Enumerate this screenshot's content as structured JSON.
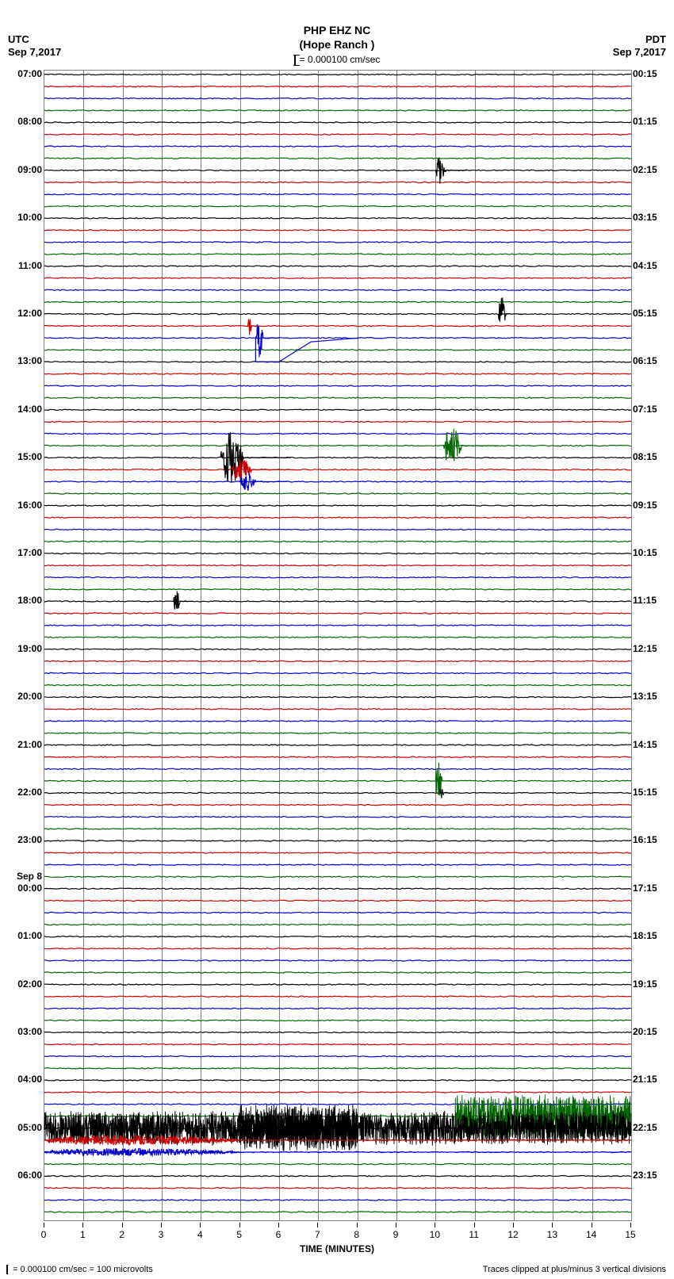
{
  "station": {
    "code": "PHP EHZ NC",
    "name": "(Hope Ranch )"
  },
  "tz_left": "UTC",
  "date_left": "Sep 7,2017",
  "tz_right": "PDT",
  "date_right": "Sep 7,2017",
  "scale": {
    "label": "= 0.000100 cm/sec"
  },
  "footer_left": "= 0.000100 cm/sec =    100 microvolts",
  "footer_right": "Traces clipped at plus/minus 3 vertical divisions",
  "x_axis": {
    "title": "TIME (MINUTES)",
    "ticks": [
      0,
      1,
      2,
      3,
      4,
      5,
      6,
      7,
      8,
      9,
      10,
      11,
      12,
      13,
      14,
      15
    ]
  },
  "colors": {
    "black": "#000000",
    "red": "#cc0000",
    "blue": "#0000cc",
    "green": "#006600",
    "grid": "#808080",
    "bg": "#ffffff"
  },
  "plot": {
    "trace_count": 96,
    "row_height": 15.1,
    "color_cycle": [
      "black",
      "red",
      "blue",
      "green"
    ],
    "left_labels": [
      {
        "row": 0,
        "text": "07:00"
      },
      {
        "row": 4,
        "text": "08:00"
      },
      {
        "row": 8,
        "text": "09:00"
      },
      {
        "row": 12,
        "text": "10:00"
      },
      {
        "row": 16,
        "text": "11:00"
      },
      {
        "row": 20,
        "text": "12:00"
      },
      {
        "row": 24,
        "text": "13:00"
      },
      {
        "row": 28,
        "text": "14:00"
      },
      {
        "row": 32,
        "text": "15:00"
      },
      {
        "row": 36,
        "text": "16:00"
      },
      {
        "row": 40,
        "text": "17:00"
      },
      {
        "row": 44,
        "text": "18:00"
      },
      {
        "row": 48,
        "text": "19:00"
      },
      {
        "row": 52,
        "text": "20:00"
      },
      {
        "row": 56,
        "text": "21:00"
      },
      {
        "row": 60,
        "text": "22:00"
      },
      {
        "row": 64,
        "text": "23:00"
      },
      {
        "row": 67,
        "text": "Sep 8"
      },
      {
        "row": 68,
        "text": "00:00"
      },
      {
        "row": 72,
        "text": "01:00"
      },
      {
        "row": 76,
        "text": "02:00"
      },
      {
        "row": 80,
        "text": "03:00"
      },
      {
        "row": 84,
        "text": "04:00"
      },
      {
        "row": 88,
        "text": "05:00"
      },
      {
        "row": 92,
        "text": "06:00"
      }
    ],
    "right_labels": [
      {
        "row": 0,
        "text": "00:15"
      },
      {
        "row": 4,
        "text": "01:15"
      },
      {
        "row": 8,
        "text": "02:15"
      },
      {
        "row": 12,
        "text": "03:15"
      },
      {
        "row": 16,
        "text": "04:15"
      },
      {
        "row": 20,
        "text": "05:15"
      },
      {
        "row": 24,
        "text": "06:15"
      },
      {
        "row": 28,
        "text": "07:15"
      },
      {
        "row": 32,
        "text": "08:15"
      },
      {
        "row": 36,
        "text": "09:15"
      },
      {
        "row": 40,
        "text": "10:15"
      },
      {
        "row": 44,
        "text": "11:15"
      },
      {
        "row": 48,
        "text": "12:15"
      },
      {
        "row": 52,
        "text": "13:15"
      },
      {
        "row": 56,
        "text": "14:15"
      },
      {
        "row": 60,
        "text": "15:15"
      },
      {
        "row": 64,
        "text": "16:15"
      },
      {
        "row": 68,
        "text": "17:15"
      },
      {
        "row": 72,
        "text": "18:15"
      },
      {
        "row": 76,
        "text": "19:15"
      },
      {
        "row": 80,
        "text": "20:15"
      },
      {
        "row": 84,
        "text": "21:15"
      },
      {
        "row": 88,
        "text": "22:15"
      },
      {
        "row": 92,
        "text": "23:15"
      }
    ],
    "bursts": [
      {
        "row": 8,
        "x_min": 10.0,
        "width_min": 0.8,
        "amp": 22,
        "color": "black"
      },
      {
        "row": 20,
        "x_min": 11.6,
        "width_min": 0.6,
        "amp": 28,
        "color": "black"
      },
      {
        "row": 21,
        "x_min": 5.2,
        "width_min": 0.3,
        "amp": 20,
        "color": "red"
      },
      {
        "row": 22,
        "x_min": 5.4,
        "width_min": 0.6,
        "amp": 35,
        "color": "blue",
        "tail": true
      },
      {
        "row": 31,
        "x_min": 10.2,
        "width_min": 1.4,
        "amp": 32,
        "color": "green"
      },
      {
        "row": 32,
        "x_min": 4.5,
        "width_min": 1.8,
        "amp": 42,
        "color": "black"
      },
      {
        "row": 33,
        "x_min": 4.8,
        "width_min": 1.5,
        "amp": 18,
        "color": "red"
      },
      {
        "row": 34,
        "x_min": 5.0,
        "width_min": 1.2,
        "amp": 14,
        "color": "blue"
      },
      {
        "row": 44,
        "x_min": 3.3,
        "width_min": 0.5,
        "amp": 18,
        "color": "black"
      },
      {
        "row": 59,
        "x_min": 10.0,
        "width_min": 0.5,
        "amp": 30,
        "color": "green"
      },
      {
        "row": 60,
        "x_min": 10.1,
        "width_min": 0.3,
        "amp": 10,
        "color": "black"
      },
      {
        "row": 87,
        "x_min": 10.5,
        "width_min": 4.5,
        "amp": 35,
        "color": "green",
        "dense": true
      },
      {
        "row": 88,
        "x_min": 0.0,
        "width_min": 15.0,
        "amp": 28,
        "color": "black",
        "dense": true
      },
      {
        "row": 88,
        "x_min": 5.0,
        "width_min": 3.0,
        "amp": 40,
        "color": "black",
        "dense": true
      },
      {
        "row": 89,
        "x_min": 0.0,
        "width_min": 15.0,
        "amp": 8,
        "color": "red"
      },
      {
        "row": 90,
        "x_min": 0.0,
        "width_min": 15.0,
        "amp": 6,
        "color": "blue"
      }
    ]
  }
}
